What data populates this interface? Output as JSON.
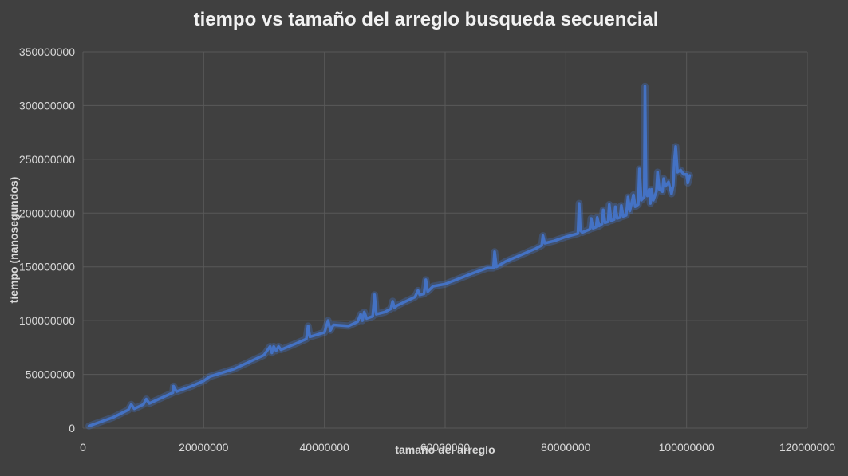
{
  "chart_data": {
    "type": "line",
    "title": "tiempo vs tamaño del arreglo busqueda secuencial",
    "xlabel": "tamaño del arreglo",
    "ylabel": "tiempo (nanosegundos)",
    "xlim": [
      0,
      120000000
    ],
    "ylim": [
      0,
      350000000
    ],
    "x_ticks": [
      "0",
      "20000000",
      "40000000",
      "60000000",
      "80000000",
      "100000000",
      "120000000"
    ],
    "y_ticks": [
      "0",
      "50000000",
      "100000000",
      "150000000",
      "200000000",
      "250000000",
      "300000000",
      "350000000"
    ],
    "grid": true,
    "legend": "none",
    "colors": {
      "background": "#404040",
      "grid": "#595959",
      "series": "#4472c4",
      "text": "#d9d9d9"
    },
    "series": [
      {
        "x": [
          1000000,
          5000000,
          7500000,
          8000000,
          8500000,
          10000000,
          10500000,
          11000000,
          14900000,
          15000000,
          15500000,
          17000000,
          18000000,
          20000000,
          21000000,
          25000000,
          30000000,
          31000000,
          31300000,
          31600000,
          32000000,
          32400000,
          32800000,
          35000000,
          37000000,
          37300000,
          37600000,
          40000000,
          40600000,
          41000000,
          41500000,
          44000000,
          45500000,
          46000000,
          46300000,
          46600000,
          47000000,
          48000000,
          48300000,
          48600000,
          50000000,
          51000000,
          51300000,
          51600000,
          52000000,
          55000000,
          55500000,
          55800000,
          56500000,
          56800000,
          57100000,
          58000000,
          60000000,
          65000000,
          67000000,
          68000000,
          68200000,
          68500000,
          70000000,
          75000000,
          76000000,
          76200000,
          76500000,
          78000000,
          80000000,
          82000000,
          82200000,
          82400000,
          82700000,
          84000000,
          84200000,
          84500000,
          85000000,
          85200000,
          85500000,
          86000000,
          86200000,
          86500000,
          87000000,
          87200000,
          87500000,
          88000000,
          88200000,
          88500000,
          89000000,
          89200000,
          89500000,
          90000000,
          90300000,
          90600000,
          91000000,
          91200000,
          91500000,
          92000000,
          92200000,
          92500000,
          93000000,
          93100000,
          93300000,
          93500000,
          93800000,
          94000000,
          94200000,
          94500000,
          95000000,
          95200000,
          95500000,
          96000000,
          96200000,
          96500000,
          97000000,
          97500000,
          97800000,
          98000000,
          98200000,
          98500000,
          99000000,
          99500000,
          100000000,
          100200000,
          100500000
        ],
        "values": [
          2000000,
          10000000,
          17000000,
          22000000,
          18000000,
          22000000,
          27000000,
          23000000,
          33000000,
          39000000,
          34000000,
          37000000,
          39000000,
          44000000,
          48000000,
          55000000,
          68000000,
          76000000,
          70000000,
          76000000,
          72000000,
          76000000,
          73000000,
          78000000,
          83000000,
          95000000,
          85000000,
          89000000,
          100000000,
          91000000,
          96000000,
          95000000,
          99000000,
          106000000,
          100000000,
          108000000,
          102000000,
          104000000,
          124000000,
          106000000,
          108000000,
          111000000,
          118000000,
          112000000,
          114000000,
          122000000,
          128000000,
          124000000,
          125000000,
          138000000,
          127000000,
          132000000,
          134000000,
          145000000,
          149000000,
          149000000,
          164000000,
          150000000,
          155000000,
          167000000,
          170000000,
          179000000,
          172000000,
          174000000,
          178000000,
          181000000,
          209000000,
          184000000,
          182000000,
          185000000,
          195000000,
          186000000,
          187000000,
          196000000,
          188000000,
          190000000,
          203000000,
          191000000,
          192000000,
          208000000,
          193000000,
          194000000,
          206000000,
          195000000,
          196000000,
          207000000,
          197000000,
          198000000,
          215000000,
          202000000,
          212000000,
          217000000,
          206000000,
          208000000,
          241000000,
          212000000,
          215000000,
          318000000,
          220000000,
          216000000,
          222000000,
          209000000,
          222000000,
          212000000,
          220000000,
          238000000,
          222000000,
          220000000,
          232000000,
          225000000,
          229000000,
          218000000,
          226000000,
          250000000,
          262000000,
          238000000,
          240000000,
          236000000,
          236000000,
          228000000,
          235000000
        ]
      }
    ]
  }
}
